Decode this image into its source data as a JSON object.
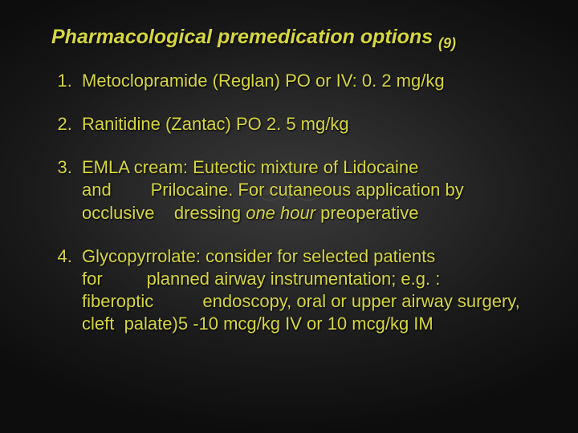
{
  "colors": {
    "background_center": "#3a3a3a",
    "background_edge": "#0d0d0d",
    "text": "#d6d63f",
    "flourish": "#888888"
  },
  "typography": {
    "title_fontsize": 25,
    "title_style": "italic bold",
    "ref_fontsize": 18,
    "item_fontsize": 22,
    "line_height": 1.28,
    "font_family": "Arial"
  },
  "title": {
    "text": "Pharmacological premedication options ",
    "ref": "(9)"
  },
  "items": [
    {
      "html": "Metoclopramide (Reglan) PO or IV: 0. 2 mg/kg"
    },
    {
      "html": "Ranitidine (Zantac) PO 2. 5 mg/kg"
    },
    {
      "html": "EMLA cream: Eutectic mixture of Lidocaine and&nbsp;&nbsp;&nbsp;&nbsp;&nbsp;&nbsp;&nbsp;&nbsp;Prilocaine. For cutaneous application by occlusive&nbsp;&nbsp;&nbsp;&nbsp;dressing <span class=\"em\">one hour</span> preoperative"
    },
    {
      "html": "Glycopyrrolate: consider for selected patients for&nbsp;&nbsp;&nbsp;&nbsp;&nbsp;&nbsp;&nbsp;&nbsp;&nbsp;planned airway instrumentation; e.g. : fiberoptic&nbsp;&nbsp;&nbsp;&nbsp;&nbsp;&nbsp;&nbsp;&nbsp;&nbsp;&nbsp;endoscopy, oral or upper airway surgery, cleft&nbsp;&nbsp;palate)5 -10 mcg/kg IV or 10 mcg/kg IM"
    }
  ]
}
